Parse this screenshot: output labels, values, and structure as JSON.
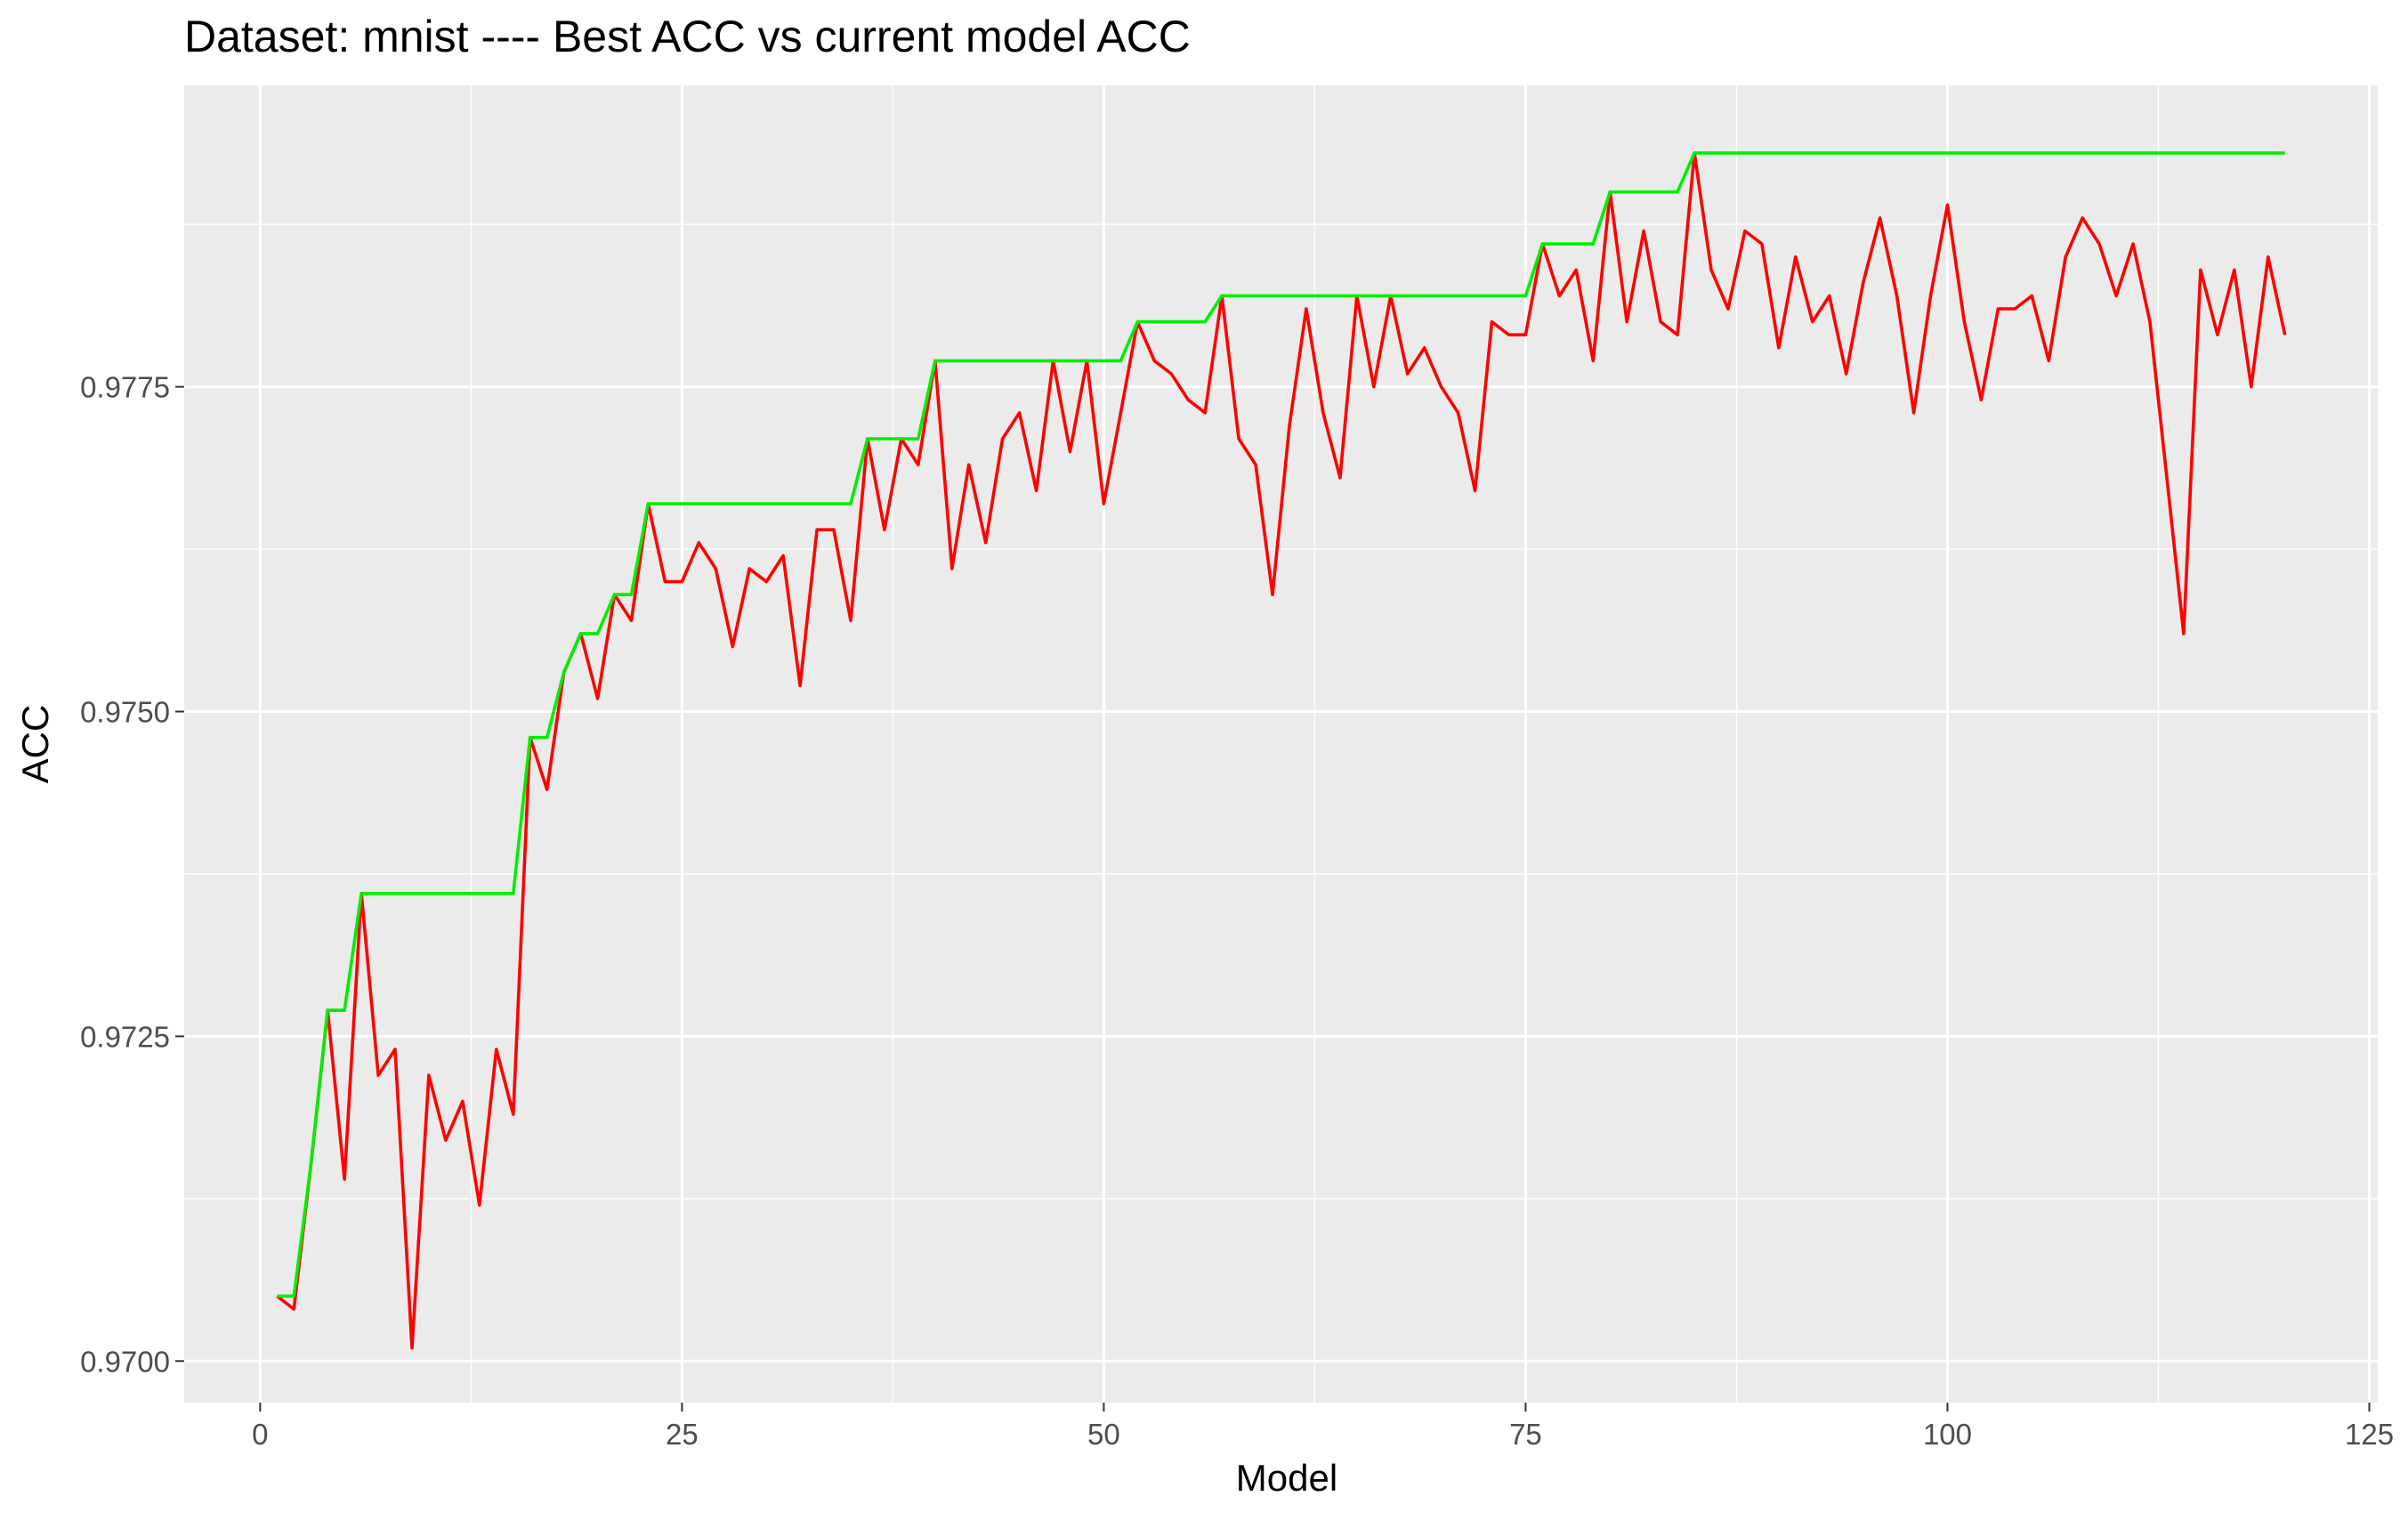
{
  "chart_data": {
    "type": "line",
    "title": "Dataset:  mnist  ---- Best ACC vs current model ACC",
    "xlabel": "Model",
    "ylabel": "ACC",
    "xlim": [
      -4.5,
      125.5
    ],
    "ylim": [
      0.96968,
      0.97982
    ],
    "x_ticks": [
      0,
      25,
      50,
      75,
      100,
      125
    ],
    "x_tick_labels": [
      "0",
      "25",
      "50",
      "75",
      "100",
      "125"
    ],
    "y_ticks": [
      0.97,
      0.9725,
      0.975,
      0.9775
    ],
    "y_tick_labels": [
      "0.9700",
      "0.9725",
      "0.9750",
      "0.9775"
    ],
    "grid": true,
    "background": "#ebebeb",
    "x": [
      1,
      2,
      3,
      4,
      5,
      6,
      7,
      8,
      9,
      10,
      11,
      12,
      13,
      14,
      15,
      16,
      17,
      18,
      19,
      20,
      21,
      22,
      23,
      24,
      25,
      26,
      27,
      28,
      29,
      30,
      31,
      32,
      33,
      34,
      35,
      36,
      37,
      38,
      39,
      40,
      41,
      42,
      43,
      44,
      45,
      46,
      47,
      48,
      49,
      50,
      51,
      52,
      53,
      54,
      55,
      56,
      57,
      58,
      59,
      60,
      61,
      62,
      63,
      64,
      65,
      66,
      67,
      68,
      69,
      70,
      71,
      72,
      73,
      74,
      75,
      76,
      77,
      78,
      79,
      80,
      81,
      82,
      83,
      84,
      85,
      86,
      87,
      88,
      89,
      90,
      91,
      92,
      93,
      94,
      95,
      96,
      97,
      98,
      99,
      100,
      101,
      102,
      103,
      104,
      105,
      106,
      107,
      108,
      109,
      110,
      111,
      112,
      113,
      114,
      115,
      116,
      117,
      118,
      119,
      120
    ],
    "series": [
      {
        "color": "#ff0000",
        "values": [
          0.9705,
          0.9704,
          0.9715,
          0.9727,
          0.9714,
          0.9736,
          0.9722,
          0.9724,
          0.9701,
          0.9722,
          0.9717,
          0.972,
          0.9712,
          0.9724,
          0.9719,
          0.9748,
          0.9744,
          0.9753,
          0.9756,
          0.9751,
          0.9759,
          0.9757,
          0.9766,
          0.976,
          0.976,
          0.9763,
          0.9761,
          0.9755,
          0.9761,
          0.976,
          0.9762,
          0.9752,
          0.9764,
          0.9764,
          0.9757,
          0.9771,
          0.9764,
          0.9771,
          0.9769,
          0.9777,
          0.9761,
          0.9769,
          0.9763,
          0.9771,
          0.9773,
          0.9767,
          0.9777,
          0.977,
          0.9777,
          0.9766,
          0.9773,
          0.978,
          0.9777,
          0.9776,
          0.9774,
          0.9773,
          0.9782,
          0.9771,
          0.9769,
          0.9759,
          0.9772,
          0.9781,
          0.9773,
          0.9768,
          0.9782,
          0.9775,
          0.9782,
          0.9776,
          0.9778,
          0.9775,
          0.9773,
          0.9767,
          0.978,
          0.9779,
          0.9779,
          0.9786,
          0.9782,
          0.9784,
          0.9777,
          0.979,
          0.978,
          0.9787,
          0.978,
          0.9779,
          0.9793,
          0.9784,
          0.9781,
          0.9787,
          0.9786,
          0.9778,
          0.9785,
          0.978,
          0.9782,
          0.9776,
          0.9783,
          0.9788,
          0.9782,
          0.9773,
          0.9782,
          0.9789,
          0.978,
          0.9774,
          0.9781,
          0.9781,
          0.9782,
          0.9777,
          0.9785,
          0.9788,
          0.9786,
          0.9782,
          0.9786,
          0.978,
          0.9768,
          0.9756,
          0.9784,
          0.9779,
          0.9784,
          0.9775,
          0.9785,
          0.9779
        ]
      },
      {
        "color": "#00ee00",
        "values": [
          0.9705,
          0.9705,
          0.9715,
          0.9727,
          0.9727,
          0.9736,
          0.9736,
          0.9736,
          0.9736,
          0.9736,
          0.9736,
          0.9736,
          0.9736,
          0.9736,
          0.9736,
          0.9748,
          0.9748,
          0.9753,
          0.9756,
          0.9756,
          0.9759,
          0.9759,
          0.9766,
          0.9766,
          0.9766,
          0.9766,
          0.9766,
          0.9766,
          0.9766,
          0.9766,
          0.9766,
          0.9766,
          0.9766,
          0.9766,
          0.9766,
          0.9771,
          0.9771,
          0.9771,
          0.9771,
          0.9777,
          0.9777,
          0.9777,
          0.9777,
          0.9777,
          0.9777,
          0.9777,
          0.9777,
          0.9777,
          0.9777,
          0.9777,
          0.9777,
          0.978,
          0.978,
          0.978,
          0.978,
          0.978,
          0.9782,
          0.9782,
          0.9782,
          0.9782,
          0.9782,
          0.9782,
          0.9782,
          0.9782,
          0.9782,
          0.9782,
          0.9782,
          0.9782,
          0.9782,
          0.9782,
          0.9782,
          0.9782,
          0.9782,
          0.9782,
          0.9782,
          0.9786,
          0.9786,
          0.9786,
          0.9786,
          0.979,
          0.979,
          0.979,
          0.979,
          0.979,
          0.9793,
          0.9793,
          0.9793,
          0.9793,
          0.9793,
          0.9793,
          0.9793,
          0.9793,
          0.9793,
          0.9793,
          0.9793,
          0.9793,
          0.9793,
          0.9793,
          0.9793,
          0.9793,
          0.9793,
          0.9793,
          0.9793,
          0.9793,
          0.9793,
          0.9793,
          0.9793,
          0.9793,
          0.9793,
          0.9793,
          0.9793,
          0.9793,
          0.9793,
          0.9793,
          0.9793,
          0.9793,
          0.9793,
          0.9793,
          0.9793,
          0.9793
        ]
      }
    ]
  }
}
